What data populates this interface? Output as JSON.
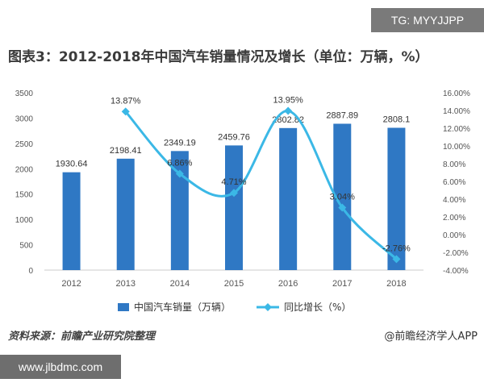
{
  "watermark_top": "TG: MYYJJPP",
  "watermark_bottom": "www.jlbdmc.com",
  "title": "图表3：2012-2018年中国汽车销量情况及增长（单位：万辆，%）",
  "source": "资料来源：前瞻产业研究院整理",
  "brand": "@前瞻经济学人APP",
  "colors": {
    "bar": "#2f78c4",
    "line": "#3bb8e6",
    "axis": "#cccccc",
    "text": "#555555"
  },
  "chart_data": {
    "type": "bar",
    "categories": [
      "2012",
      "2013",
      "2014",
      "2015",
      "2016",
      "2017",
      "2018"
    ],
    "series": [
      {
        "name": "中国汽车销量（万辆）",
        "type": "bar",
        "axis": "left",
        "values": [
          1930.64,
          2198.41,
          2349.19,
          2459.76,
          2802.82,
          2887.89,
          2808.1
        ],
        "labels": [
          "1930.64",
          "2198.41",
          "2349.19",
          "2459.76",
          "2802.82",
          "2887.89",
          "2808.1"
        ]
      },
      {
        "name": "同比增长（%）",
        "type": "line",
        "axis": "right",
        "values": [
          null,
          13.87,
          6.86,
          4.71,
          13.95,
          3.04,
          -2.76
        ],
        "labels": [
          "",
          "13.87%",
          "6.86%",
          "4.71%",
          "13.95%",
          "3.04%",
          "-2.76%"
        ]
      }
    ],
    "ylim_left": [
      0,
      3500
    ],
    "ylim_right": [
      -4,
      16
    ],
    "yticks_left": [
      "3500",
      "3000",
      "2500",
      "2000",
      "1500",
      "1000",
      "500",
      "0"
    ],
    "yticks_right": [
      "16.00%",
      "14.00%",
      "12.00%",
      "10.00%",
      "8.00%",
      "6.00%",
      "4.00%",
      "2.00%",
      "0.00%",
      "-2.00%",
      "-4.00%"
    ],
    "legend_position": "bottom-center",
    "grid": false
  }
}
